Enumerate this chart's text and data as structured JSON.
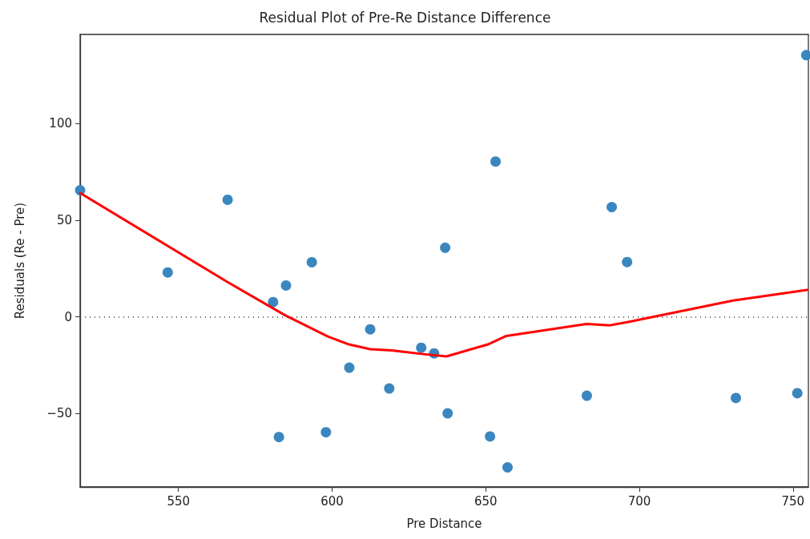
{
  "chart_data": {
    "type": "scatter",
    "title": "Residual Plot of Pre-Re Distance Difference",
    "xlabel": "Pre Distance",
    "ylabel": "Residuals (Re - Pre)",
    "xlim": [
      518,
      755
    ],
    "xticks": [
      550,
      600,
      650,
      700,
      750
    ],
    "ylim": [
      -88,
      146
    ],
    "yticks": [
      -50,
      0,
      50,
      100
    ],
    "grid": false,
    "marker": "circle",
    "series": [
      {
        "color": "#3a87c0",
        "x": [
          518,
          546.5,
          566,
          580.8,
          585,
          593.4,
          582.7,
          598,
          605.6,
          612.4,
          618.6,
          629,
          633.2,
          636.8,
          637.6,
          651.4,
          653.2,
          657.1,
          682.9,
          691,
          696,
          731.4,
          751.4,
          754.3
        ],
        "values": [
          65.4,
          22.9,
          60.5,
          7.6,
          16.2,
          28.2,
          -62.2,
          -59.7,
          -26.3,
          -6.5,
          -37.1,
          -16,
          -18.9,
          35.7,
          -49.9,
          -61.9,
          80.3,
          -77.9,
          -40.8,
          56.7,
          28.3,
          -42,
          -39.5,
          135.3
        ]
      },
      {
        "type": "line",
        "color": "#ff0000",
        "marker": "none",
        "line_style": "solid",
        "x": [
          518,
          566,
          584.7,
          598.6,
          605.5,
          612.4,
          619.4,
          629,
          637.2,
          650.7,
          656.7,
          682.8,
          690.6,
          696.7,
          730.5,
          754.6
        ],
        "values": [
          64,
          17.9,
          0.8,
          -10.2,
          -14.3,
          -16.8,
          -17.4,
          -19.2,
          -20.5,
          -14.3,
          -9.9,
          -3.7,
          -4.4,
          -2.6,
          8.4,
          13.9
        ]
      }
    ],
    "ref_lines": [
      {
        "axis": "y",
        "value": 0,
        "color": "#333333",
        "line_style": "dotted"
      }
    ]
  }
}
